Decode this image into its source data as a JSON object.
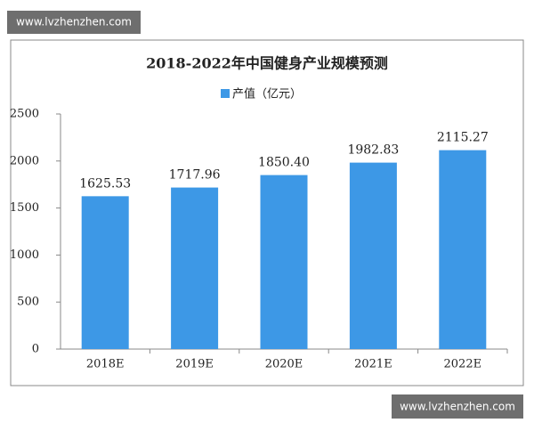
{
  "watermarks": [
    "www.lvzhenzhen.com",
    "www.lvzhenzhen.com"
  ],
  "chart_data": {
    "type": "bar",
    "title": "2018-2022年中国健身产业规模预测",
    "categories": [
      "2018E",
      "2019E",
      "2020E",
      "2021E",
      "2022E"
    ],
    "series": [
      {
        "name": "产值（亿元）",
        "color": "#3d98e6",
        "values": [
          1625.53,
          1717.96,
          1850.4,
          1982.83,
          2115.27
        ],
        "value_labels": [
          "1625.53",
          "1717.96",
          "1850.40",
          "1982.83",
          "2115.27"
        ]
      }
    ],
    "ylim": [
      0,
      2500
    ],
    "yticks": [
      0,
      500,
      1000,
      1500,
      2000,
      2500
    ],
    "grid": false,
    "legend": "top"
  }
}
